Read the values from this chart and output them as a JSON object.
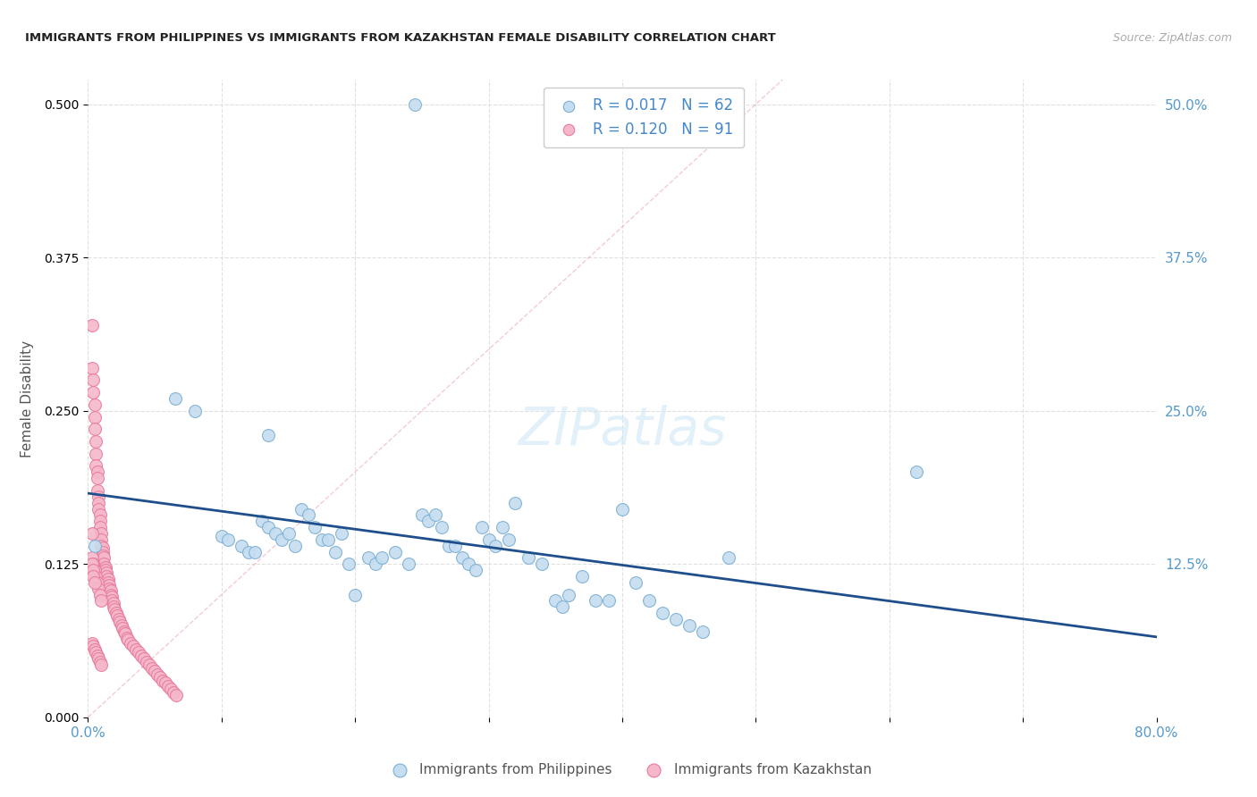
{
  "title": "IMMIGRANTS FROM PHILIPPINES VS IMMIGRANTS FROM KAZAKHSTAN FEMALE DISABILITY CORRELATION CHART",
  "source": "Source: ZipAtlas.com",
  "ylabel": "Female Disability",
  "xlim": [
    0.0,
    0.8
  ],
  "ylim": [
    0.0,
    0.52
  ],
  "xticks": [
    0.0,
    0.1,
    0.2,
    0.3,
    0.4,
    0.5,
    0.6,
    0.7,
    0.8
  ],
  "xticklabels": [
    "0.0%",
    "",
    "",
    "",
    "",
    "",
    "",
    "",
    "80.0%"
  ],
  "ytick_positions": [
    0.0,
    0.125,
    0.25,
    0.375,
    0.5
  ],
  "yticklabels_right": [
    "",
    "12.5%",
    "25.0%",
    "37.5%",
    "50.0%"
  ],
  "philippines_color": "#7bafd4",
  "philippines_fill": "#c5ddf0",
  "kazakhstan_color": "#e87a9a",
  "kazakhstan_fill": "#f5b8cb",
  "trend_line_philippines_color": "#1f4e8c",
  "trend_line_kazakhstan_color": "#e87a9a",
  "background_color": "#ffffff",
  "grid_color": "#e0e0e0",
  "philippines_r": "0.017",
  "philippines_n": "62",
  "kazakhstan_r": "0.120",
  "kazakhstan_n": "91",
  "philippines_x": [
    0.245,
    0.005,
    0.065,
    0.135,
    0.08,
    0.1,
    0.105,
    0.115,
    0.12,
    0.125,
    0.13,
    0.135,
    0.14,
    0.145,
    0.15,
    0.155,
    0.16,
    0.165,
    0.17,
    0.175,
    0.18,
    0.19,
    0.2,
    0.21,
    0.215,
    0.22,
    0.23,
    0.24,
    0.25,
    0.255,
    0.26,
    0.265,
    0.27,
    0.275,
    0.28,
    0.285,
    0.29,
    0.295,
    0.3,
    0.305,
    0.31,
    0.315,
    0.32,
    0.33,
    0.34,
    0.35,
    0.355,
    0.36,
    0.37,
    0.38,
    0.39,
    0.4,
    0.41,
    0.42,
    0.43,
    0.44,
    0.45,
    0.46,
    0.48,
    0.62,
    0.185,
    0.195
  ],
  "philippines_y": [
    0.5,
    0.14,
    0.26,
    0.23,
    0.25,
    0.148,
    0.145,
    0.14,
    0.135,
    0.135,
    0.16,
    0.155,
    0.15,
    0.145,
    0.15,
    0.14,
    0.17,
    0.165,
    0.155,
    0.145,
    0.145,
    0.15,
    0.1,
    0.13,
    0.125,
    0.13,
    0.135,
    0.125,
    0.165,
    0.16,
    0.165,
    0.155,
    0.14,
    0.14,
    0.13,
    0.125,
    0.12,
    0.155,
    0.145,
    0.14,
    0.155,
    0.145,
    0.175,
    0.13,
    0.125,
    0.095,
    0.09,
    0.1,
    0.115,
    0.095,
    0.095,
    0.17,
    0.11,
    0.095,
    0.085,
    0.08,
    0.075,
    0.07,
    0.13,
    0.2,
    0.135,
    0.125
  ],
  "kazakhstan_x": [
    0.003,
    0.003,
    0.004,
    0.004,
    0.005,
    0.005,
    0.005,
    0.006,
    0.006,
    0.006,
    0.007,
    0.007,
    0.007,
    0.008,
    0.008,
    0.008,
    0.009,
    0.009,
    0.009,
    0.01,
    0.01,
    0.01,
    0.011,
    0.011,
    0.011,
    0.012,
    0.012,
    0.013,
    0.013,
    0.014,
    0.014,
    0.015,
    0.015,
    0.016,
    0.016,
    0.017,
    0.017,
    0.018,
    0.018,
    0.019,
    0.019,
    0.02,
    0.021,
    0.022,
    0.023,
    0.024,
    0.025,
    0.026,
    0.027,
    0.028,
    0.029,
    0.03,
    0.032,
    0.034,
    0.036,
    0.038,
    0.04,
    0.042,
    0.044,
    0.046,
    0.048,
    0.05,
    0.052,
    0.054,
    0.056,
    0.058,
    0.06,
    0.062,
    0.064,
    0.066,
    0.003,
    0.004,
    0.005,
    0.006,
    0.007,
    0.008,
    0.009,
    0.01,
    0.003,
    0.004,
    0.005,
    0.006,
    0.007,
    0.008,
    0.009,
    0.01,
    0.003,
    0.003,
    0.004,
    0.004,
    0.005
  ],
  "kazakhstan_y": [
    0.32,
    0.285,
    0.275,
    0.265,
    0.255,
    0.245,
    0.235,
    0.225,
    0.215,
    0.205,
    0.2,
    0.195,
    0.185,
    0.18,
    0.175,
    0.17,
    0.165,
    0.16,
    0.155,
    0.15,
    0.145,
    0.14,
    0.138,
    0.135,
    0.132,
    0.13,
    0.125,
    0.122,
    0.12,
    0.118,
    0.115,
    0.113,
    0.11,
    0.108,
    0.105,
    0.103,
    0.1,
    0.098,
    0.095,
    0.093,
    0.09,
    0.088,
    0.085,
    0.083,
    0.08,
    0.078,
    0.075,
    0.073,
    0.07,
    0.068,
    0.065,
    0.063,
    0.06,
    0.058,
    0.055,
    0.053,
    0.05,
    0.048,
    0.045,
    0.043,
    0.04,
    0.038,
    0.035,
    0.033,
    0.03,
    0.028,
    0.025,
    0.023,
    0.02,
    0.018,
    0.13,
    0.125,
    0.12,
    0.115,
    0.11,
    0.105,
    0.1,
    0.095,
    0.06,
    0.058,
    0.055,
    0.053,
    0.05,
    0.048,
    0.045,
    0.043,
    0.15,
    0.125,
    0.12,
    0.115,
    0.11
  ],
  "diag_line_x": [
    0.0,
    0.52
  ],
  "diag_line_y": [
    0.0,
    0.52
  ]
}
